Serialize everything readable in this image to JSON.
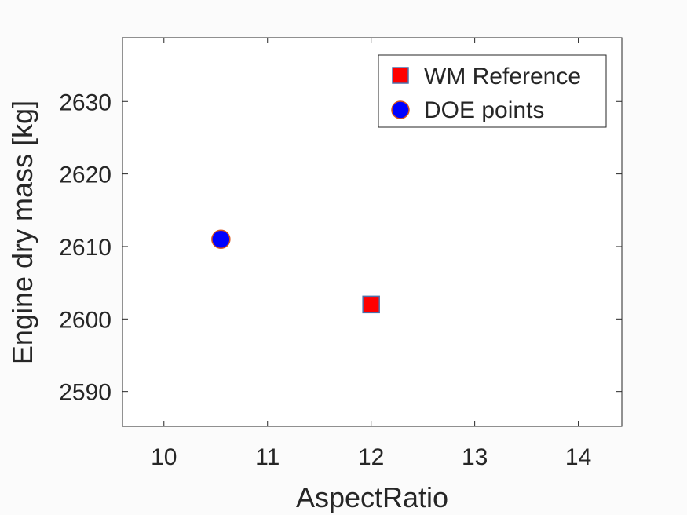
{
  "chart_data": {
    "type": "scatter",
    "xlabel": "AspectRatio",
    "ylabel": "Engine dry mass [kg]",
    "xlim": [
      9.6,
      14.42
    ],
    "ylim": [
      2585.2,
      2638.8
    ],
    "xticks": [
      10,
      11,
      12,
      13,
      14
    ],
    "yticks": [
      2590,
      2600,
      2610,
      2620,
      2630
    ],
    "grid": false,
    "legend_position": "top-right",
    "series": [
      {
        "name": "WM Reference",
        "marker": "square",
        "fill": "#ff0000",
        "edge": "#4f6fa8",
        "points": [
          {
            "x": 12.0,
            "y": 2602
          }
        ]
      },
      {
        "name": "DOE points",
        "marker": "circle",
        "fill": "#0000ff",
        "edge": "#d95319",
        "points": [
          {
            "x": 10.55,
            "y": 2611
          }
        ]
      }
    ]
  }
}
